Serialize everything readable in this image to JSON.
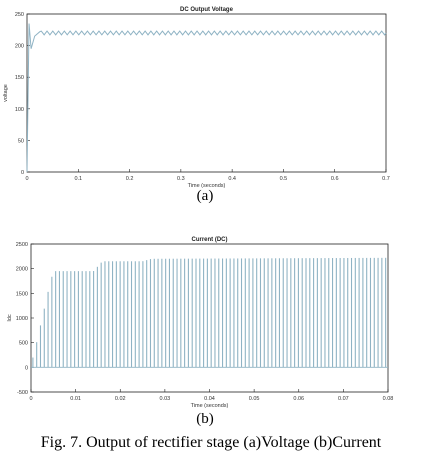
{
  "colors": {
    "trace": "#8fb3c4",
    "axis": "#222222",
    "background": "#ffffff",
    "plot_bg": "#ffffff"
  },
  "figure": {
    "label_a": "(a)",
    "label_b": "(b)",
    "caption": "Fig. 7. Output of rectifier stage (a)Voltage (b)Current"
  },
  "chart_data": [
    {
      "type": "line",
      "title": "DC Output Voltage",
      "xlabel": "Time (seconds)",
      "ylabel": "voltage",
      "xlim": [
        0,
        0.7
      ],
      "ylim": [
        0,
        250
      ],
      "xticks": [
        0,
        0.1,
        0.2,
        0.3,
        0.4,
        0.5,
        0.6,
        0.7
      ],
      "yticks": [
        0,
        50,
        100,
        150,
        200,
        250
      ],
      "xtick_labels": [
        "0",
        "0.1",
        "0.2",
        "0.3",
        "0.4",
        "0.5",
        "0.6",
        "0.7"
      ],
      "ytick_labels": [
        "0",
        "50",
        "100",
        "150",
        "200",
        "250"
      ],
      "grid": false,
      "description_values": {
        "rise_to_peak": [
          [
            0,
            0
          ],
          [
            0.004,
            235
          ],
          [
            0.008,
            195
          ],
          [
            0.015,
            215
          ],
          [
            0.025,
            222
          ]
        ],
        "steady_state_mean": 220,
        "ripple_amplitude": 3,
        "ripple_cycles": 60
      }
    },
    {
      "type": "bar",
      "title": "Current (DC)",
      "xlabel": "Time (seconds)",
      "ylabel": "Idc",
      "xlim": [
        0,
        0.08
      ],
      "ylim": [
        -500,
        2500
      ],
      "xticks": [
        0,
        0.01,
        0.02,
        0.03,
        0.04,
        0.05,
        0.06,
        0.07,
        0.08
      ],
      "yticks": [
        -500,
        0,
        500,
        1000,
        1500,
        2000,
        2500
      ],
      "xtick_labels": [
        "0",
        "0.01",
        "0.02",
        "0.03",
        "0.04",
        "0.05",
        "0.06",
        "0.07",
        "0.08"
      ],
      "ytick_labels": [
        "-500",
        "0",
        "500",
        "1000",
        "1500",
        "2000",
        "2500"
      ],
      "grid": false,
      "pulse_interval": 0.00085,
      "envelope": [
        [
          0,
          50
        ],
        [
          0.001,
          400
        ],
        [
          0.002,
          800
        ],
        [
          0.003,
          1200
        ],
        [
          0.004,
          1600
        ],
        [
          0.005,
          1950
        ],
        [
          0.014,
          1950
        ],
        [
          0.016,
          2150
        ],
        [
          0.025,
          2150
        ],
        [
          0.027,
          2200
        ],
        [
          0.08,
          2220
        ]
      ]
    }
  ]
}
